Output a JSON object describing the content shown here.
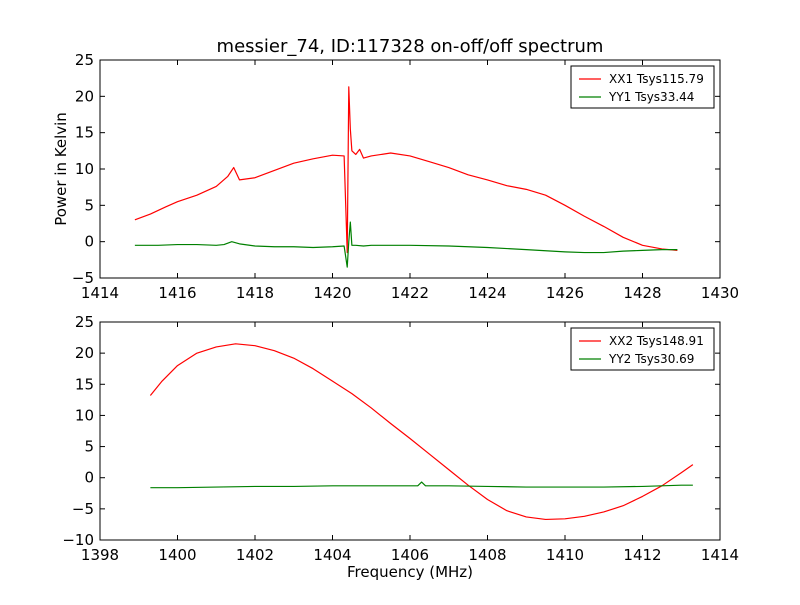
{
  "chart_data": [
    {
      "type": "line",
      "title": "messier_74, ID:117328 on-off/off spectrum",
      "xlabel": "",
      "ylabel": "Power in Kelvin",
      "xlim": [
        1414,
        1430
      ],
      "ylim": [
        -5,
        25
      ],
      "xticks": [
        1414,
        1416,
        1418,
        1420,
        1422,
        1424,
        1426,
        1428,
        1430
      ],
      "yticks": [
        -5,
        0,
        5,
        10,
        15,
        20,
        25
      ],
      "grid": false,
      "legend": "top-right",
      "series": [
        {
          "name": "XX1 Tsys115.79",
          "color": "#ff0000",
          "x": [
            1414.9,
            1415.3,
            1415.7,
            1416.0,
            1416.5,
            1417.0,
            1417.3,
            1417.45,
            1417.6,
            1418.0,
            1418.5,
            1419.0,
            1419.5,
            1420.0,
            1420.3,
            1420.38,
            1420.42,
            1420.46,
            1420.5,
            1420.6,
            1420.7,
            1420.8,
            1421.0,
            1421.5,
            1422.0,
            1422.5,
            1423.0,
            1423.5,
            1424.0,
            1424.5,
            1425.0,
            1425.5,
            1426.0,
            1426.5,
            1427.0,
            1427.5,
            1428.0,
            1428.5,
            1428.9
          ],
          "y": [
            3.0,
            3.8,
            4.8,
            5.5,
            6.4,
            7.6,
            9.0,
            10.2,
            8.5,
            8.8,
            9.8,
            10.8,
            11.4,
            11.9,
            11.8,
            -1.5,
            21.3,
            15.5,
            12.5,
            12.0,
            12.7,
            11.5,
            11.8,
            12.2,
            11.8,
            11.0,
            10.2,
            9.2,
            8.5,
            7.7,
            7.2,
            6.4,
            5.0,
            3.5,
            2.1,
            0.6,
            -0.5,
            -1.0,
            -1.2
          ]
        },
        {
          "name": "YY1 Tsys33.44",
          "color": "#008000",
          "x": [
            1414.9,
            1415.5,
            1416.0,
            1416.5,
            1417.0,
            1417.2,
            1417.4,
            1417.6,
            1418.0,
            1418.5,
            1419.0,
            1419.5,
            1420.0,
            1420.3,
            1420.38,
            1420.42,
            1420.46,
            1420.5,
            1420.6,
            1420.8,
            1421.0,
            1421.5,
            1422.0,
            1423.0,
            1424.0,
            1425.0,
            1426.0,
            1426.5,
            1427.0,
            1427.5,
            1428.0,
            1428.5,
            1428.9
          ],
          "y": [
            -0.5,
            -0.5,
            -0.4,
            -0.4,
            -0.5,
            -0.4,
            0.0,
            -0.3,
            -0.6,
            -0.7,
            -0.7,
            -0.8,
            -0.7,
            -0.6,
            -3.5,
            0.0,
            2.7,
            -0.5,
            -0.5,
            -0.6,
            -0.5,
            -0.5,
            -0.5,
            -0.6,
            -0.8,
            -1.1,
            -1.4,
            -1.5,
            -1.5,
            -1.3,
            -1.2,
            -1.1,
            -1.1
          ]
        }
      ]
    },
    {
      "type": "line",
      "title": "",
      "xlabel": "Frequency (MHz)",
      "ylabel": "",
      "xlim": [
        1398,
        1414
      ],
      "ylim": [
        -10,
        25
      ],
      "xticks": [
        1398,
        1400,
        1402,
        1404,
        1406,
        1408,
        1410,
        1412,
        1414
      ],
      "yticks": [
        -10,
        -5,
        0,
        5,
        10,
        15,
        20,
        25
      ],
      "grid": false,
      "legend": "top-right",
      "series": [
        {
          "name": "XX2 Tsys148.91",
          "color": "#ff0000",
          "x": [
            1399.3,
            1399.6,
            1400.0,
            1400.5,
            1401.0,
            1401.5,
            1402.0,
            1402.5,
            1403.0,
            1403.5,
            1404.0,
            1404.5,
            1405.0,
            1405.5,
            1406.0,
            1406.5,
            1407.0,
            1407.5,
            1408.0,
            1408.5,
            1409.0,
            1409.5,
            1410.0,
            1410.5,
            1411.0,
            1411.5,
            1412.0,
            1412.5,
            1413.0,
            1413.3
          ],
          "y": [
            13.2,
            15.5,
            18.0,
            20.0,
            21.0,
            21.5,
            21.2,
            20.4,
            19.2,
            17.5,
            15.5,
            13.5,
            11.2,
            8.7,
            6.3,
            3.8,
            1.3,
            -1.2,
            -3.5,
            -5.3,
            -6.3,
            -6.7,
            -6.6,
            -6.2,
            -5.5,
            -4.5,
            -3.0,
            -1.3,
            0.8,
            2.1
          ]
        },
        {
          "name": "YY2 Tsys30.69",
          "color": "#008000",
          "x": [
            1399.3,
            1400.0,
            1401.0,
            1402.0,
            1403.0,
            1404.0,
            1405.0,
            1406.0,
            1406.2,
            1406.3,
            1406.4,
            1407.0,
            1408.0,
            1409.0,
            1410.0,
            1411.0,
            1412.0,
            1413.0,
            1413.3
          ],
          "y": [
            -1.6,
            -1.6,
            -1.5,
            -1.4,
            -1.4,
            -1.3,
            -1.3,
            -1.3,
            -1.3,
            -0.7,
            -1.3,
            -1.3,
            -1.4,
            -1.5,
            -1.5,
            -1.5,
            -1.4,
            -1.2,
            -1.2
          ]
        }
      ]
    }
  ]
}
